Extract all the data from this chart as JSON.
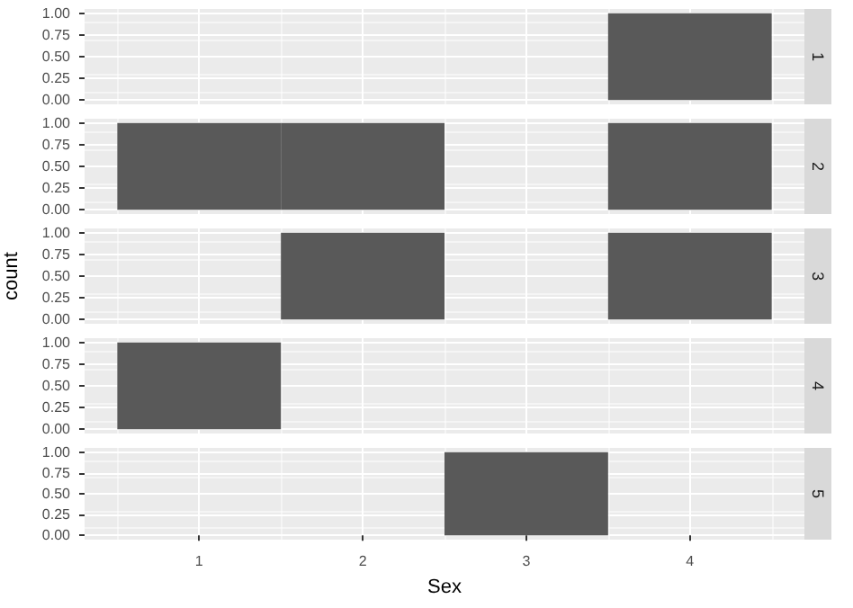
{
  "chart_data": [
    {
      "type": "histogram",
      "title": "1",
      "bins": [
        0.5,
        1.5,
        2.5,
        3.5,
        4.5
      ],
      "values": [
        0,
        0,
        0,
        1
      ],
      "color": "#595959",
      "xlim": [
        0.3,
        4.7
      ],
      "xticks": [
        1,
        2,
        3,
        4
      ],
      "ylim": [
        -0.05,
        1.05
      ],
      "yticks": [
        {
          "value": 0,
          "label": "0.00"
        },
        {
          "value": 0.25,
          "label": "0.25"
        },
        {
          "value": 0.5,
          "label": "0.50"
        },
        {
          "value": 0.75,
          "label": "0.75"
        },
        {
          "value": 1,
          "label": "1.00"
        }
      ],
      "grid": true,
      "tick_labels": "y"
    },
    {
      "type": "histogram",
      "title": "2",
      "bins": [
        0.5,
        1.5,
        2.5,
        3.5,
        4.5
      ],
      "values": [
        1,
        1,
        0,
        1
      ],
      "color": "#595959",
      "xlim": [
        0.3,
        4.7
      ],
      "xticks": [
        1,
        2,
        3,
        4
      ],
      "ylim": [
        -0.05,
        1.05
      ],
      "yticks": [
        {
          "value": 0,
          "label": "0.00"
        },
        {
          "value": 0.25,
          "label": "0.25"
        },
        {
          "value": 0.5,
          "label": "0.50"
        },
        {
          "value": 0.75,
          "label": "0.75"
        },
        {
          "value": 1,
          "label": "1.00"
        }
      ],
      "grid": true,
      "tick_labels": "y"
    },
    {
      "type": "histogram",
      "title": "3",
      "ylabel": "count",
      "bins": [
        0.5,
        1.5,
        2.5,
        3.5,
        4.5
      ],
      "values": [
        0,
        1,
        0,
        1
      ],
      "color": "#595959",
      "xlim": [
        0.3,
        4.7
      ],
      "xticks": [
        1,
        2,
        3,
        4
      ],
      "ylim": [
        -0.05,
        1.05
      ],
      "yticks": [
        {
          "value": 0,
          "label": "0.00"
        },
        {
          "value": 0.25,
          "label": "0.25"
        },
        {
          "value": 0.5,
          "label": "0.50"
        },
        {
          "value": 0.75,
          "label": "0.75"
        },
        {
          "value": 1,
          "label": "1.00"
        }
      ],
      "grid": true,
      "tick_labels": "y"
    },
    {
      "type": "histogram",
      "title": "4",
      "bins": [
        0.5,
        1.5,
        2.5,
        3.5,
        4.5
      ],
      "values": [
        1,
        0,
        0,
        0
      ],
      "color": "#595959",
      "xlim": [
        0.3,
        4.7
      ],
      "xticks": [
        1,
        2,
        3,
        4
      ],
      "ylim": [
        -0.05,
        1.05
      ],
      "yticks": [
        {
          "value": 0,
          "label": "0.00"
        },
        {
          "value": 0.25,
          "label": "0.25"
        },
        {
          "value": 0.5,
          "label": "0.50"
        },
        {
          "value": 0.75,
          "label": "0.75"
        },
        {
          "value": 1,
          "label": "1.00"
        }
      ],
      "grid": true,
      "tick_labels": "y"
    },
    {
      "type": "histogram",
      "title": "5",
      "xlabel": "Sex",
      "bins": [
        0.5,
        1.5,
        2.5,
        3.5,
        4.5
      ],
      "values": [
        0,
        0,
        1,
        0
      ],
      "color": "#595959",
      "xlim": [
        0.3,
        4.7
      ],
      "xticks": [
        1,
        2,
        3,
        4
      ],
      "ylim": [
        -0.05,
        1.05
      ],
      "yticks": [
        {
          "value": 0,
          "label": "0.00"
        },
        {
          "value": 0.25,
          "label": "0.25"
        },
        {
          "value": 0.5,
          "label": "0.50"
        },
        {
          "value": 0.75,
          "label": "0.75"
        },
        {
          "value": 1,
          "label": "1.00"
        }
      ],
      "grid": true
    }
  ]
}
